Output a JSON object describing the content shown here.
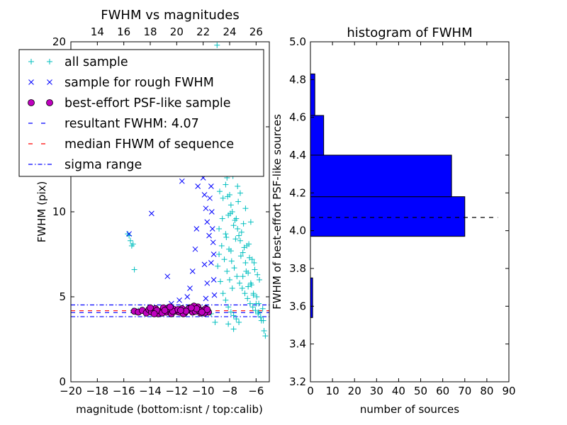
{
  "chart_data": [
    {
      "type": "scatter",
      "title": "FWHM vs magnitudes",
      "xlabel": "magnitude (bottom:isnt / top:calib)",
      "ylabel": "FWHM (pix)",
      "xlim": [
        -20,
        -5
      ],
      "ylim": [
        0,
        20
      ],
      "xticks": [
        "−20",
        "−18",
        "−16",
        "−14",
        "−12",
        "−10",
        "−8",
        "−6"
      ],
      "xtick_values": [
        -20,
        -18,
        -16,
        -14,
        -12,
        -10,
        -8,
        -6
      ],
      "yticks": [
        "0",
        "5",
        "10",
        "15",
        "20"
      ],
      "ytick_values": [
        0,
        5,
        10,
        15,
        20
      ],
      "top_xticks": [
        "14",
        "16",
        "18",
        "20",
        "22",
        "24",
        "26"
      ],
      "top_xtick_values": [
        14,
        16,
        18,
        20,
        22,
        24,
        26
      ],
      "top_xlim": [
        12,
        27
      ],
      "grid": false,
      "legend_position": "upper-left",
      "colors": {
        "all": "#00bfbf",
        "rough": "#0000ff",
        "best": "#bf00bf",
        "resultant": "#0000ff",
        "median": "#ff0000",
        "sigma": "#0000ff"
      },
      "legend": [
        {
          "key": "all",
          "label": "all sample"
        },
        {
          "key": "rough",
          "label": "sample for rough FWHM"
        },
        {
          "key": "best",
          "label": "best-effort PSF-like sample"
        },
        {
          "key": "resultant",
          "label": "resultant FWHM: 4.07"
        },
        {
          "key": "median",
          "label": "median FHWM of sequence"
        },
        {
          "key": "sigma",
          "label": "sigma range"
        }
      ],
      "lines": {
        "resultant": 4.07,
        "median": 4.18,
        "sigma_low": 3.83,
        "sigma_high": 4.52
      },
      "series": [
        {
          "key": "all",
          "x": [
            -15.7,
            -15.6,
            -15.5,
            -15.4,
            -15.3,
            -15.2,
            -15.1,
            -15.3,
            -14.9,
            -13.1,
            -12.5,
            -11.7,
            -11.0,
            -10.6,
            -10.1,
            -9.7,
            -9.4,
            -9.1,
            -8.95,
            -8.8,
            -8.9,
            -8.6,
            -8.4,
            -8.2,
            -8.0,
            -7.8,
            -7.6,
            -7.4,
            -7.2,
            -7.0,
            -6.8,
            -6.6,
            -6.4,
            -6.2,
            -6.0,
            -5.8,
            -5.6,
            -5.4,
            -5.3,
            -8.7,
            -8.3,
            -7.9,
            -7.5,
            -7.1,
            -6.7,
            -6.3,
            -5.9,
            -8.5,
            -8.1,
            -7.7,
            -7.3,
            -6.9,
            -6.5,
            -6.1,
            -8.8,
            -8.6,
            -8.4,
            -8.2,
            -8.0,
            -7.8,
            -8.9,
            -8.7,
            -8.5,
            -8.3,
            -8.1,
            -7.9,
            -7.7,
            -7.5,
            -7.3,
            -8.4,
            -8.0,
            -7.6,
            -7.2,
            -6.8,
            -6.4,
            -7.0,
            -6.6,
            -6.2,
            -5.8,
            -5.5,
            -8.6,
            -8.2,
            -7.8,
            -7.4,
            -8.8,
            -8.3,
            -7.9,
            -8.1,
            -7.7,
            -9.0,
            -8.75,
            -8.55,
            -8.25,
            -8.05,
            -7.85,
            -7.65,
            -7.45,
            -7.25,
            -7.05,
            -6.85,
            -6.65,
            -6.45,
            -6.25,
            -6.05,
            -5.85,
            -5.65,
            -5.45,
            -8.65,
            -8.45,
            -8.15,
            -7.95,
            -7.55,
            -7.15,
            -6.75,
            -6.35,
            -5.95,
            -8.35,
            -7.75,
            -7.35,
            -6.95,
            -6.55,
            -6.15,
            -5.75
          ],
          "y": [
            8.7,
            8.6,
            8.3,
            8.0,
            8.1,
            6.6,
            4.1,
            4.2,
            4.2,
            4.3,
            4.2,
            4.1,
            4.2,
            4.3,
            4.2,
            4.1,
            4.0,
            3.5,
            19.8,
            18.5,
            16.0,
            14.5,
            13.0,
            12.0,
            11.0,
            10.0,
            9.5,
            9.0,
            8.3,
            7.6,
            7.0,
            6.4,
            5.8,
            5.2,
            4.6,
            4.1,
            3.6,
            3.0,
            2.7,
            12.8,
            11.6,
            10.4,
            9.6,
            8.8,
            8.0,
            7.2,
            6.3,
            10.8,
            9.8,
            9.2,
            8.6,
            7.9,
            7.3,
            6.6,
            9.0,
            8.0,
            7.2,
            6.5,
            6.0,
            5.5,
            6.8,
            5.9,
            5.2,
            4.8,
            4.4,
            4.1,
            3.9,
            3.7,
            3.5,
            15.2,
            13.5,
            12.3,
            11.1,
            10.2,
            9.4,
            6.2,
            5.6,
            5.1,
            4.6,
            4.3,
            17.5,
            14.8,
            13.0,
            11.5,
            7.5,
            8.7,
            7.7,
            3.4,
            3.1,
            12.5,
            11.2,
            9.6,
            8.5,
            7.8,
            7.1,
            6.7,
            6.2,
            5.8,
            5.5,
            5.2,
            4.9,
            4.6,
            4.4,
            4.2,
            4.0,
            3.8,
            3.6,
            13.8,
            12.6,
            10.9,
            9.9,
            8.4,
            7.4,
            6.5,
            5.7,
            5.0,
            14.2,
            12.1,
            10.6,
            9.3,
            8.1,
            7.0,
            6.0
          ]
        },
        {
          "key": "rough",
          "x": [
            -15.6,
            -13.9,
            -12.7,
            -11.6,
            -11.4,
            -11.0,
            -10.5,
            -10.3,
            -10.0,
            -9.9,
            -9.8,
            -9.7,
            -9.65,
            -9.6,
            -9.55,
            -9.5,
            -9.45,
            -9.4,
            -9.35,
            -9.3,
            -9.25,
            -9.2,
            -9.15,
            -10.2,
            -10.4,
            -10.6,
            -10.8,
            -11.2,
            -11.8,
            -12.4,
            -9.9,
            -9.7,
            -9.5,
            -9.3,
            -9.6,
            -9.4,
            -9.8,
            -9.2,
            -9.5,
            -9.7
          ],
          "y": [
            8.7,
            9.9,
            6.2,
            11.8,
            13.2,
            5.5,
            9.0,
            14.6,
            12.0,
            11.0,
            10.2,
            9.4,
            15.5,
            12.8,
            8.6,
            16.0,
            13.8,
            11.5,
            10.0,
            9.0,
            8.2,
            7.5,
            5.1,
            13.2,
            11.5,
            7.8,
            6.5,
            5.0,
            4.8,
            4.6,
            6.9,
            5.8,
            10.8,
            12.3,
            14.2,
            7.0,
            4.9,
            6.0,
            17.3,
            13.9
          ]
        },
        {
          "key": "best",
          "x": [
            -15.2,
            -14.9,
            -14.6,
            -14.3,
            -14.1,
            -13.9,
            -13.6,
            -13.4,
            -13.2,
            -13.0,
            -12.8,
            -12.6,
            -12.4,
            -12.2,
            -12.0,
            -11.8,
            -11.6,
            -11.4,
            -11.2,
            -11.0,
            -10.8,
            -10.6,
            -10.4,
            -10.2,
            -10.0,
            -9.8,
            -9.6,
            -14.0,
            -13.5,
            -13.1,
            -12.7,
            -12.3,
            -11.9,
            -11.5,
            -11.1,
            -10.7,
            -10.3,
            -9.9,
            -9.7,
            -12.9,
            -11.3,
            -10.5,
            -10.1,
            -13.7,
            -12.5,
            -11.7,
            -10.9
          ],
          "y": [
            4.15,
            4.1,
            4.2,
            4.05,
            4.25,
            4.1,
            4.3,
            4.0,
            4.15,
            4.35,
            4.1,
            4.2,
            4.0,
            4.25,
            4.15,
            4.1,
            4.3,
            4.05,
            4.2,
            4.35,
            4.1,
            4.15,
            4.4,
            4.05,
            4.2,
            4.3,
            4.1,
            4.35,
            4.2,
            4.05,
            4.3,
            4.15,
            4.25,
            4.0,
            4.3,
            4.45,
            4.2,
            4.05,
            4.25,
            4.2,
            4.15,
            4.3,
            4.1,
            4.0,
            4.4,
            4.2,
            4.35
          ]
        }
      ]
    },
    {
      "type": "bar",
      "orientation": "horizontal",
      "title": "histogram of FWHM",
      "xlabel": "number of sources",
      "ylabel": "FWHM of best-effort PSF-like sources",
      "xlim": [
        0,
        90
      ],
      "ylim": [
        3.2,
        5.0
      ],
      "xticks": [
        "0",
        "10",
        "20",
        "30",
        "40",
        "50",
        "60",
        "70",
        "80",
        "90"
      ],
      "xtick_values": [
        0,
        10,
        20,
        30,
        40,
        50,
        60,
        70,
        80,
        90
      ],
      "yticks": [
        "3.2",
        "3.4",
        "3.6",
        "3.8",
        "4.0",
        "4.2",
        "4.4",
        "4.6",
        "4.8",
        "5.0"
      ],
      "ytick_values": [
        3.2,
        3.4,
        3.6,
        3.8,
        4.0,
        4.2,
        4.4,
        4.6,
        4.8,
        5.0
      ],
      "grid": false,
      "bar_color": "#0000ff",
      "bins": [
        {
          "lo": 3.54,
          "hi": 3.75,
          "count": 1
        },
        {
          "lo": 3.75,
          "hi": 3.97,
          "count": 0
        },
        {
          "lo": 3.97,
          "hi": 4.18,
          "count": 70
        },
        {
          "lo": 4.18,
          "hi": 4.4,
          "count": 64
        },
        {
          "lo": 4.4,
          "hi": 4.61,
          "count": 6
        },
        {
          "lo": 4.61,
          "hi": 4.83,
          "count": 2
        }
      ],
      "resultant_line": 4.07
    }
  ]
}
